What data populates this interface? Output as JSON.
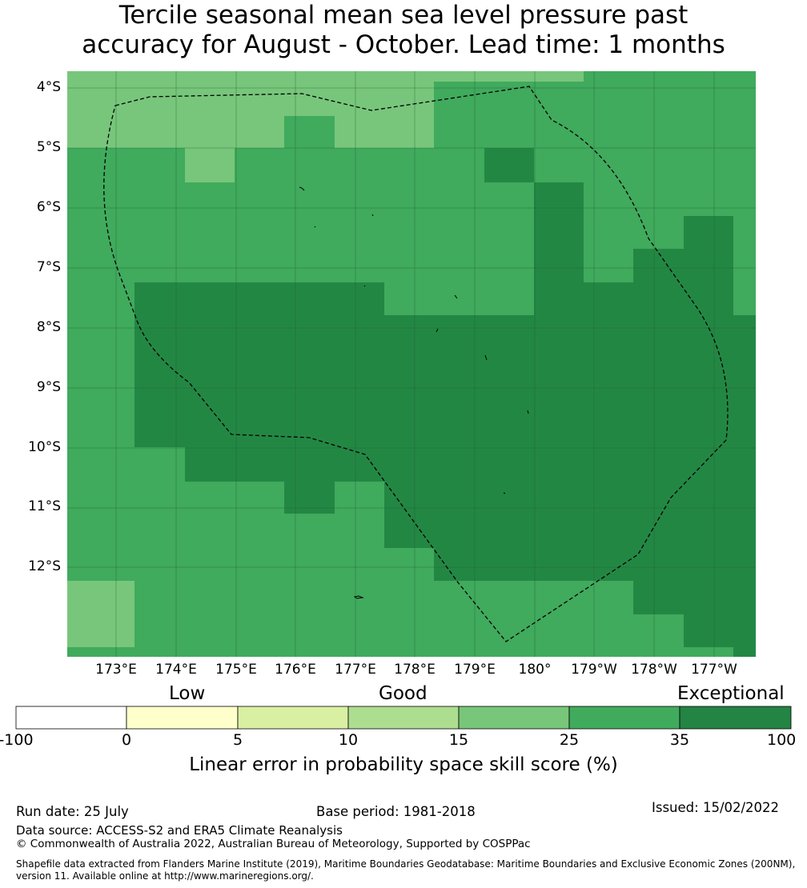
{
  "title": {
    "line1": "Tercile seasonal mean sea level pressure past",
    "line2": "accuracy for August - October. Lead time: 1 months"
  },
  "map": {
    "lat_labels": [
      "4°S",
      "5°S",
      "6°S",
      "7°S",
      "8°S",
      "9°S",
      "10°S",
      "11°S",
      "12°S"
    ],
    "lon_labels": [
      "173°E",
      "174°E",
      "175°E",
      "176°E",
      "177°E",
      "178°E",
      "179°E",
      "180°",
      "179°W",
      "178°W",
      "177°W"
    ],
    "gridlines": true,
    "boundary_style": "dashed EEZ outline",
    "cell_colors": {
      "15-25": "#77c67b",
      "25-35": "#40aa5d",
      "35-100": "#238744"
    }
  },
  "colorbar": {
    "categories": [
      "Low",
      "Good",
      "Exceptional"
    ],
    "ticks": [
      "-100",
      "0",
      "5",
      "10",
      "15",
      "25",
      "35",
      "100"
    ],
    "colors": [
      "#ffffff",
      "#ffffcc",
      "#d9f0a3",
      "#addd8e",
      "#78c679",
      "#41ab5d",
      "#238443"
    ],
    "label": "Linear error in probability space skill score (%)"
  },
  "footer": {
    "run_date": "Run date: 25 July",
    "base_period": "Base period: 1981-2018",
    "issued": "Issued: 15/02/2022",
    "data_source": "Data source: ACCESS-S2 and ERA5 Climate Reanalysis",
    "copyright": "© Commonwealth of Australia 2022, Australian Bureau of Meteorology, Supported by COSPPac",
    "shapefile_line1": "Shapefile data extracted from Flanders Marine Institute (2019), Maritime Boundaries Geodatabase: Maritime Boundaries and Exclusive Economic Zones (200NM),",
    "shapefile_line2": "version 11. Available online at http://www.marineregions.org/."
  }
}
